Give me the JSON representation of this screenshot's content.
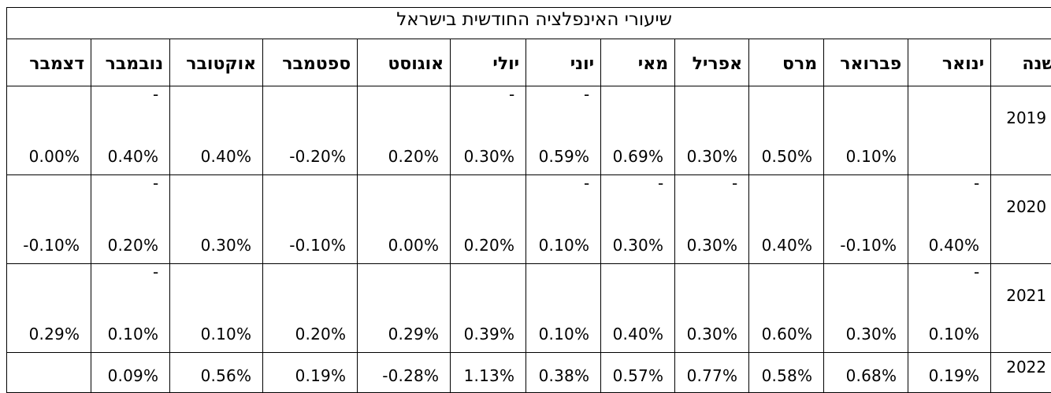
{
  "title": "שיעורי האינפלציה החודשית בישראל",
  "headers": [
    "שנה",
    "ינואר",
    "פברואר",
    "מרס",
    "אפריל",
    "מאי",
    "יוני",
    "יולי",
    "אוגוסט",
    "ספטמבר",
    "אוקטובר",
    "נובמבר",
    "דצמבר"
  ],
  "rows": [
    {
      "year": "2019",
      "cells": [
        {
          "dash": "",
          "value": ""
        },
        {
          "dash": "",
          "value": "0.10%"
        },
        {
          "dash": "",
          "value": "0.50%"
        },
        {
          "dash": "",
          "value": "0.30%"
        },
        {
          "dash": "",
          "value": "0.69%"
        },
        {
          "dash": "-",
          "value": "0.59%"
        },
        {
          "dash": "-",
          "value": "0.30%"
        },
        {
          "dash": "",
          "value": "0.20%"
        },
        {
          "dash": "",
          "value": "-0.20%"
        },
        {
          "dash": "",
          "value": "0.40%"
        },
        {
          "dash": "-",
          "value": "0.40%"
        },
        {
          "dash": "",
          "value": "0.00%"
        }
      ]
    },
    {
      "year": "2020",
      "cells": [
        {
          "dash": "-",
          "value": "0.40%"
        },
        {
          "dash": "",
          "value": "-0.10%"
        },
        {
          "dash": "",
          "value": "0.40%"
        },
        {
          "dash": "-",
          "value": "0.30%"
        },
        {
          "dash": "-",
          "value": "0.30%"
        },
        {
          "dash": "-",
          "value": "0.10%"
        },
        {
          "dash": "",
          "value": "0.20%"
        },
        {
          "dash": "",
          "value": "0.00%"
        },
        {
          "dash": "",
          "value": "-0.10%"
        },
        {
          "dash": "",
          "value": "0.30%"
        },
        {
          "dash": "-",
          "value": "0.20%"
        },
        {
          "dash": "",
          "value": "-0.10%"
        }
      ]
    },
    {
      "year": "2021",
      "cells": [
        {
          "dash": "-",
          "value": "0.10%"
        },
        {
          "dash": "",
          "value": "0.30%"
        },
        {
          "dash": "",
          "value": "0.60%"
        },
        {
          "dash": "",
          "value": "0.30%"
        },
        {
          "dash": "",
          "value": "0.40%"
        },
        {
          "dash": "",
          "value": "0.10%"
        },
        {
          "dash": "",
          "value": "0.39%"
        },
        {
          "dash": "",
          "value": "0.29%"
        },
        {
          "dash": "",
          "value": "0.20%"
        },
        {
          "dash": "",
          "value": "0.10%"
        },
        {
          "dash": "-",
          "value": "0.10%"
        },
        {
          "dash": "",
          "value": "0.29%"
        }
      ]
    },
    {
      "year": "2022",
      "cells": [
        {
          "dash": "",
          "value": "0.19%"
        },
        {
          "dash": "",
          "value": "0.68%"
        },
        {
          "dash": "",
          "value": "0.58%"
        },
        {
          "dash": "",
          "value": "0.77%"
        },
        {
          "dash": "",
          "value": "0.57%"
        },
        {
          "dash": "",
          "value": "0.38%"
        },
        {
          "dash": "",
          "value": "1.13%"
        },
        {
          "dash": "",
          "value": "-0.28%"
        },
        {
          "dash": "",
          "value": "0.19%"
        },
        {
          "dash": "",
          "value": "0.56%"
        },
        {
          "dash": "",
          "value": "0.09%"
        },
        {
          "dash": "",
          "value": ""
        }
      ]
    }
  ]
}
